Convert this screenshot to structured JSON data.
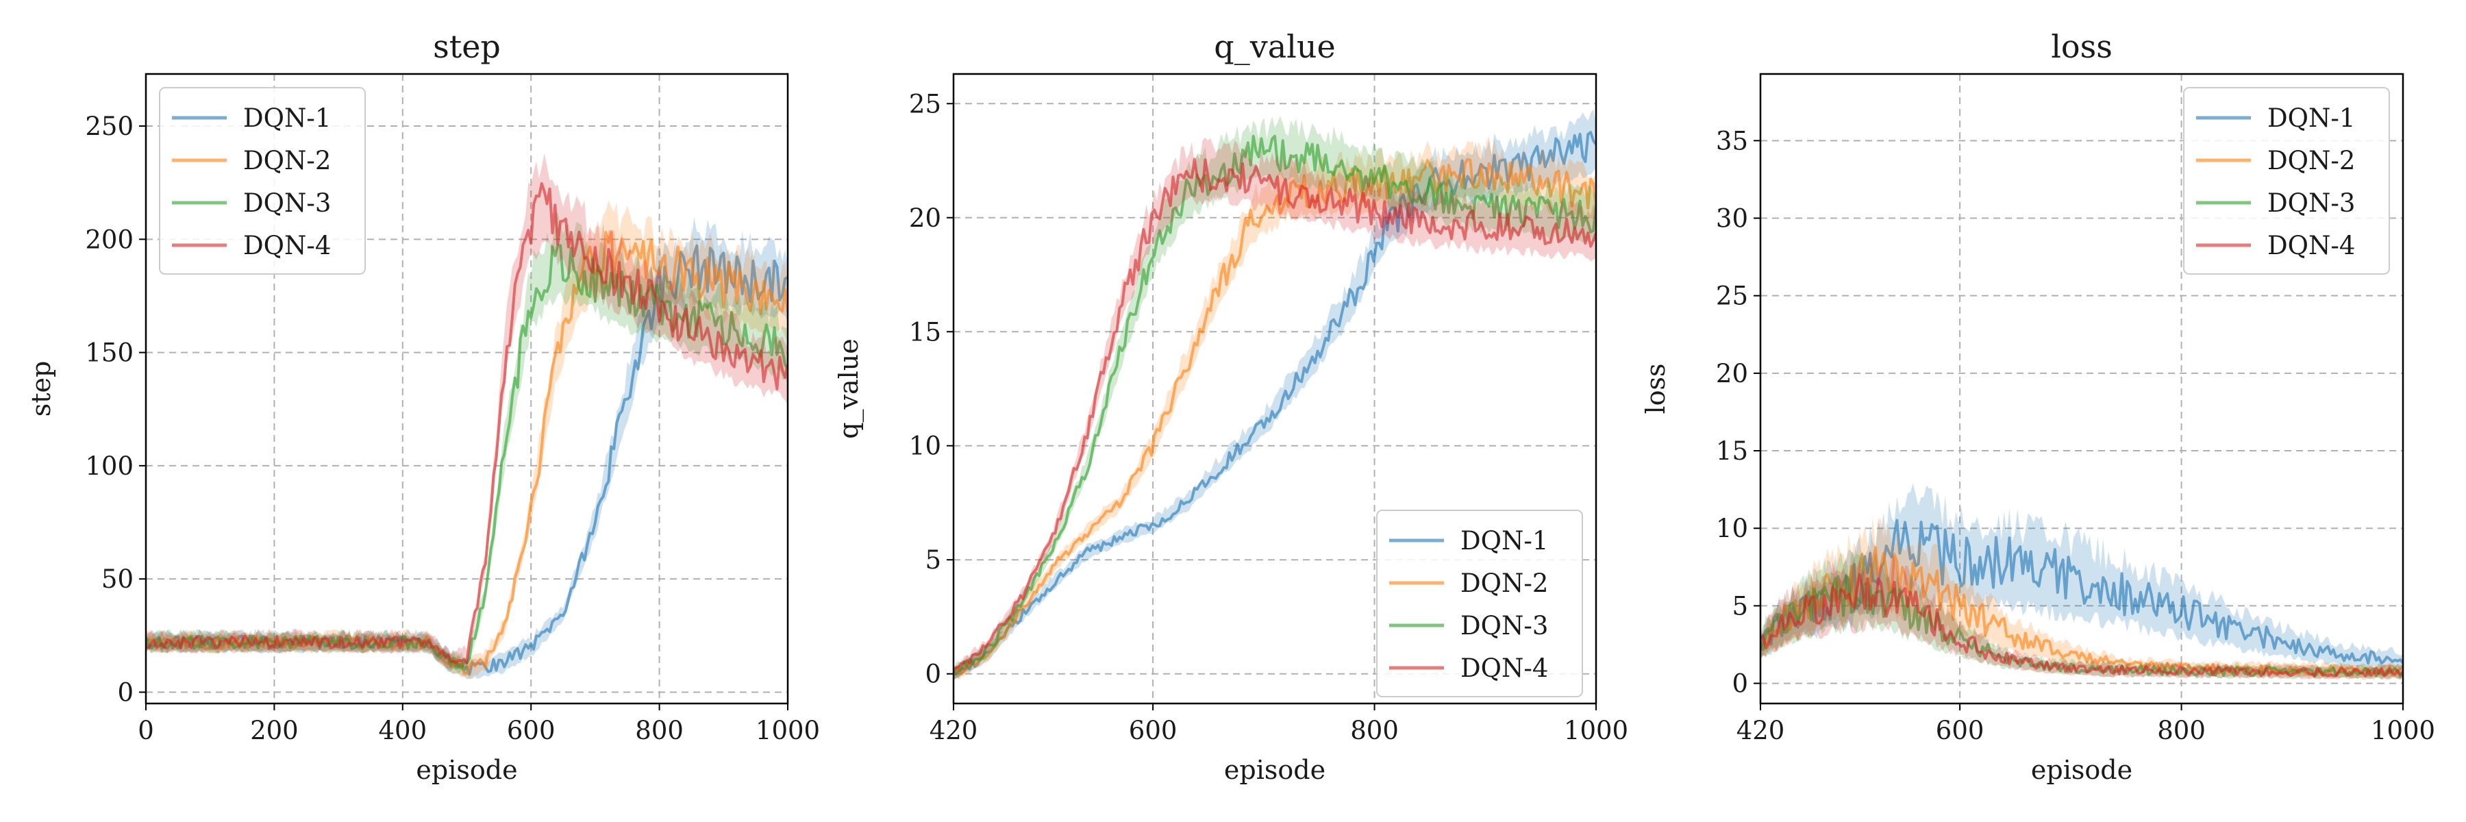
{
  "chart_data": [
    {
      "type": "line",
      "title": "step",
      "xlabel": "episode",
      "ylabel": "step",
      "xlim": [
        0,
        1000
      ],
      "ylim": [
        -5,
        273
      ],
      "xticks": [
        "0",
        "200",
        "400",
        "600",
        "800",
        "1000"
      ],
      "yticks": [
        "0",
        "50",
        "100",
        "150",
        "200",
        "250"
      ],
      "grid": true,
      "legend": "upper-left",
      "series": [
        {
          "name": "DQN-1",
          "color": "#1f77b4",
          "x": [
            0,
            100,
            200,
            300,
            400,
            440,
            470,
            500,
            550,
            600,
            650,
            700,
            740,
            770,
            800,
            850,
            900,
            950,
            1000
          ],
          "y": [
            22,
            22,
            22,
            22,
            22,
            22,
            14,
            10,
            12,
            20,
            35,
            75,
            120,
            155,
            180,
            188,
            185,
            182,
            180
          ]
        },
        {
          "name": "DQN-2",
          "color": "#ff7f0e",
          "x": [
            0,
            100,
            200,
            300,
            400,
            440,
            470,
            500,
            530,
            560,
            600,
            640,
            680,
            720,
            780,
            850,
            900,
            950,
            1000
          ],
          "y": [
            22,
            22,
            22,
            22,
            22,
            22,
            14,
            10,
            14,
            30,
            80,
            150,
            185,
            195,
            190,
            185,
            180,
            175,
            170
          ]
        },
        {
          "name": "DQN-3",
          "color": "#2ca02c",
          "x": [
            0,
            100,
            200,
            300,
            400,
            440,
            470,
            500,
            530,
            560,
            600,
            640,
            680,
            750,
            850,
            950,
            1000
          ],
          "y": [
            22,
            22,
            22,
            22,
            22,
            22,
            14,
            12,
            45,
            110,
            175,
            190,
            185,
            175,
            165,
            158,
            150
          ]
        },
        {
          "name": "DQN-4",
          "color": "#d62728",
          "x": [
            0,
            100,
            200,
            300,
            400,
            440,
            470,
            500,
            530,
            560,
            590,
            620,
            650,
            700,
            780,
            850,
            950,
            1000
          ],
          "y": [
            22,
            22,
            22,
            22,
            22,
            22,
            14,
            15,
            60,
            150,
            200,
            220,
            205,
            190,
            175,
            160,
            145,
            140
          ]
        }
      ]
    },
    {
      "type": "line",
      "title": "q_value",
      "xlabel": "episode",
      "ylabel": "q_value",
      "xlim": [
        420,
        1000
      ],
      "ylim": [
        -1.3,
        26.3
      ],
      "xticks": [
        "420",
        "600",
        "800",
        "1000"
      ],
      "yticks": [
        "0",
        "5",
        "10",
        "15",
        "20",
        "25"
      ],
      "grid": true,
      "legend": "lower-right",
      "series": [
        {
          "name": "DQN-1",
          "color": "#1f77b4",
          "x": [
            420,
            450,
            480,
            510,
            540,
            570,
            600,
            630,
            660,
            700,
            740,
            780,
            810,
            850,
            900,
            950,
            1000
          ],
          "y": [
            0,
            0.8,
            2.5,
            4.0,
            5.3,
            6.0,
            6.5,
            7.5,
            9.0,
            11.0,
            13.5,
            16.5,
            19.5,
            21.5,
            22.0,
            22.5,
            23.3
          ]
        },
        {
          "name": "DQN-2",
          "color": "#ff7f0e",
          "x": [
            420,
            450,
            480,
            510,
            540,
            570,
            600,
            630,
            660,
            690,
            720,
            760,
            800,
            850,
            900,
            950,
            1000
          ],
          "y": [
            0,
            0.8,
            2.7,
            4.7,
            6.2,
            7.5,
            10.0,
            13.5,
            17.0,
            20.0,
            21.0,
            21.3,
            21.5,
            21.8,
            22.0,
            21.5,
            21.0
          ]
        },
        {
          "name": "DQN-3",
          "color": "#2ca02c",
          "x": [
            420,
            450,
            480,
            510,
            540,
            570,
            600,
            630,
            660,
            690,
            720,
            760,
            800,
            850,
            900,
            950,
            1000
          ],
          "y": [
            0,
            1.0,
            3.0,
            5.5,
            9.0,
            14.0,
            18.5,
            21.0,
            22.0,
            22.8,
            22.8,
            22.5,
            21.8,
            21.0,
            20.5,
            20.2,
            20.0
          ]
        },
        {
          "name": "DQN-4",
          "color": "#d62728",
          "x": [
            420,
            450,
            480,
            510,
            540,
            570,
            600,
            630,
            660,
            700,
            740,
            780,
            820,
            860,
            900,
            950,
            1000
          ],
          "y": [
            0,
            1.2,
            3.2,
            6.0,
            10.5,
            16.0,
            20.0,
            21.8,
            22.0,
            21.5,
            21.0,
            20.5,
            20.0,
            19.8,
            19.6,
            19.4,
            19.2
          ]
        }
      ]
    },
    {
      "type": "line",
      "title": "loss",
      "xlabel": "episode",
      "ylabel": "loss",
      "xlim": [
        420,
        1000
      ],
      "ylim": [
        -1.3,
        39.3
      ],
      "xticks": [
        "420",
        "600",
        "800",
        "1000"
      ],
      "yticks": [
        "0",
        "5",
        "10",
        "15",
        "20",
        "25",
        "30",
        "35"
      ],
      "grid": true,
      "legend": "upper-right",
      "series": [
        {
          "name": "DQN-1",
          "color": "#1f77b4",
          "x": [
            420,
            440,
            470,
            500,
            530,
            550,
            570,
            600,
            650,
            700,
            750,
            800,
            850,
            900,
            950,
            1000
          ],
          "y": [
            2.5,
            4.0,
            5.0,
            6.0,
            7.5,
            9.0,
            8.5,
            8.0,
            7.5,
            6.8,
            5.8,
            4.7,
            3.5,
            2.5,
            1.8,
            1.5
          ]
        },
        {
          "name": "DQN-2",
          "color": "#ff7f0e",
          "x": [
            420,
            440,
            470,
            500,
            530,
            560,
            600,
            650,
            700,
            750,
            800,
            850,
            900,
            950,
            1000
          ],
          "y": [
            2.5,
            4.0,
            5.3,
            6.5,
            7.3,
            6.8,
            5.0,
            3.0,
            1.8,
            1.2,
            1.0,
            0.9,
            0.85,
            0.8,
            0.8
          ]
        },
        {
          "name": "DQN-3",
          "color": "#2ca02c",
          "x": [
            420,
            440,
            470,
            500,
            530,
            560,
            600,
            640,
            680,
            720,
            800,
            900,
            1000
          ],
          "y": [
            2.5,
            4.0,
            5.2,
            5.8,
            5.5,
            4.5,
            2.8,
            1.6,
            1.1,
            0.9,
            0.8,
            0.75,
            0.7
          ]
        },
        {
          "name": "DQN-4",
          "color": "#d62728",
          "x": [
            420,
            440,
            470,
            500,
            530,
            560,
            600,
            640,
            680,
            720,
            800,
            900,
            1000
          ],
          "y": [
            2.5,
            4.0,
            5.0,
            5.6,
            5.8,
            4.8,
            2.8,
            1.6,
            1.1,
            0.9,
            0.8,
            0.75,
            0.7
          ]
        }
      ]
    }
  ]
}
